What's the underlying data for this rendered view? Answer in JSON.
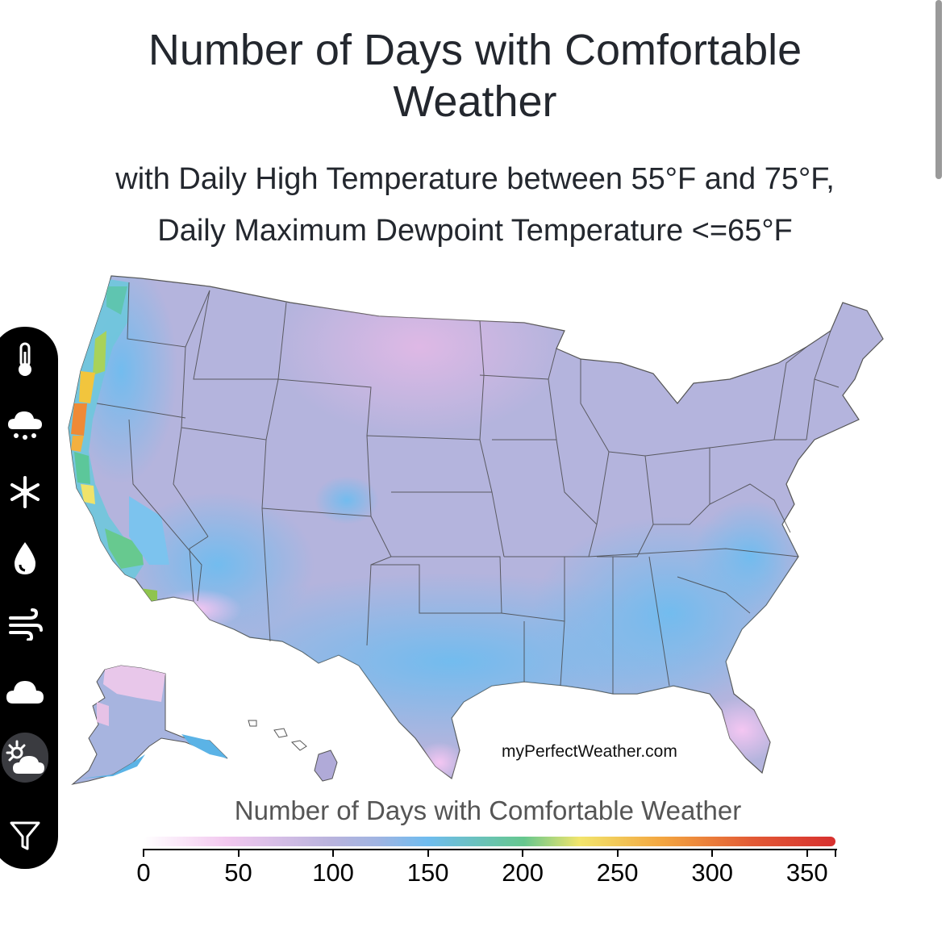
{
  "title": {
    "line1": "Number of Days with Comfortable",
    "line2": "Weather"
  },
  "subtitle": {
    "line1": "with Daily High Temperature between 55°F and 75°F,",
    "line2": "Daily Maximum Dewpoint Temperature <=65°F"
  },
  "map": {
    "watermark": "myPerfectWeather.com",
    "regions": [
      {
        "name": "Continental US",
        "days_range": [
          80,
          150
        ]
      },
      {
        "name": "California coast",
        "days_range": [
          150,
          320
        ]
      },
      {
        "name": "South Florida",
        "days_range": [
          0,
          60
        ]
      },
      {
        "name": "Alaska",
        "days_range": [
          40,
          130
        ]
      },
      {
        "name": "Hawaii",
        "days_range": [
          90,
          110
        ]
      }
    ]
  },
  "legend": {
    "title": "Number of Days with Comfortable Weather",
    "ticks": [
      "0",
      "50",
      "100",
      "150",
      "200",
      "250",
      "300",
      "350"
    ],
    "min": 0,
    "max": 365,
    "colors": {
      "low": "#ffffff",
      "mid_low": "#b9b3dd",
      "mid": "#6fbcef",
      "mid_high": "#f2e56c",
      "high": "#d7302f"
    }
  },
  "toolbar": {
    "items": [
      {
        "icon": "thermometer-icon",
        "active": false
      },
      {
        "icon": "rain-cloud-icon",
        "active": false
      },
      {
        "icon": "snowflake-icon",
        "active": false
      },
      {
        "icon": "humidity-drop-icon",
        "active": false
      },
      {
        "icon": "wind-icon",
        "active": false
      },
      {
        "icon": "cloud-icon",
        "active": false
      },
      {
        "icon": "sun-cloud-icon",
        "active": true
      },
      {
        "icon": "filter-icon",
        "active": false
      }
    ]
  }
}
